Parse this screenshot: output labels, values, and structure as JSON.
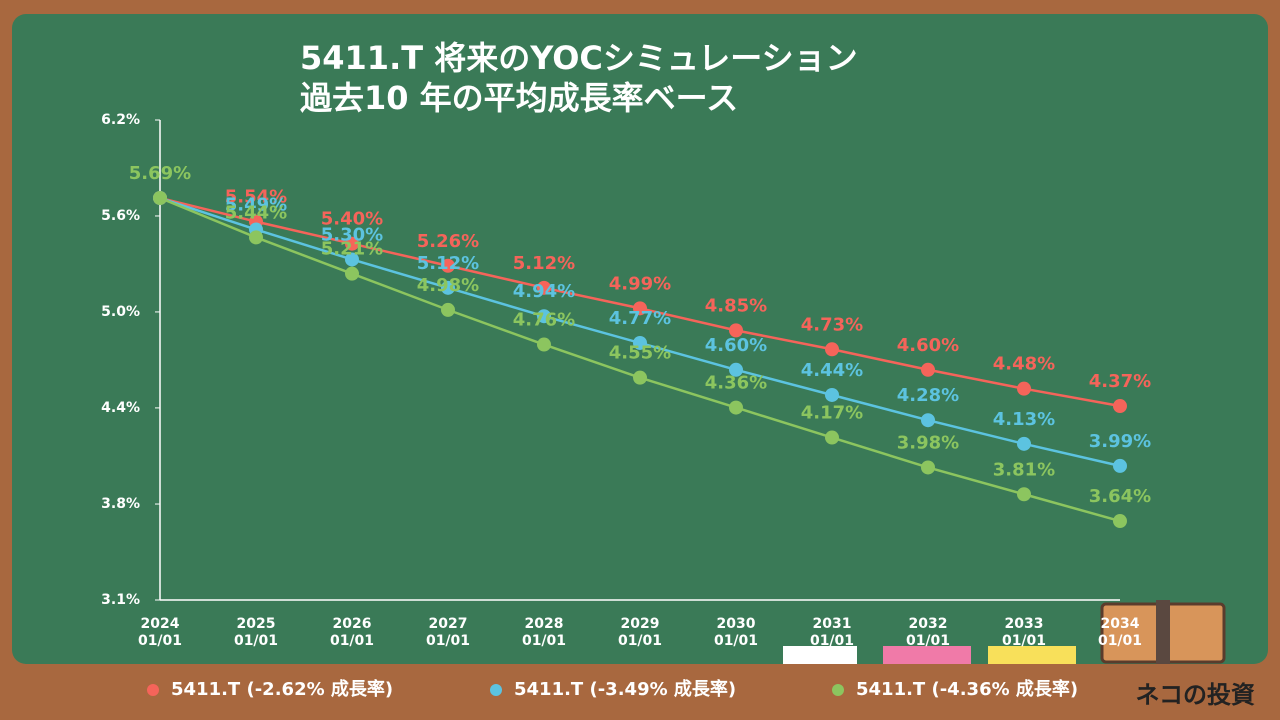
{
  "chart_data": {
    "type": "line",
    "title": "5411.T 将来のYOCシミュレーション",
    "subtitle": "過去10 年の平均成長率ベース",
    "categories": [
      "2024\n01/01",
      "2025\n01/01",
      "2026\n01/01",
      "2027\n01/01",
      "2028\n01/01",
      "2029\n01/01",
      "2030\n01/01",
      "2031\n01/01",
      "2032\n01/01",
      "2033\n01/01",
      "2034\n01/01"
    ],
    "series": [
      {
        "name": "5411.T (-2.62% 成長率)",
        "color": "#f5645a",
        "values": [
          5.69,
          5.54,
          5.4,
          5.26,
          5.12,
          4.99,
          4.85,
          4.73,
          4.6,
          4.48,
          4.37
        ],
        "value_labels": [
          null,
          "5.54%",
          "5.40%",
          "5.26%",
          "5.12%",
          "4.99%",
          "4.85%",
          "4.73%",
          "4.60%",
          "4.48%",
          "4.37%"
        ]
      },
      {
        "name": "5411.T (-3.49% 成長率)",
        "color": "#5cc3e0",
        "values": [
          5.69,
          5.49,
          5.3,
          5.12,
          4.94,
          4.77,
          4.6,
          4.44,
          4.28,
          4.13,
          3.99
        ],
        "value_labels": [
          null,
          "5.49%",
          "5.30%",
          "5.12%",
          "4.94%",
          "4.77%",
          "4.60%",
          "4.44%",
          "4.28%",
          "4.13%",
          "3.99%"
        ]
      },
      {
        "name": "5411.T (-4.36% 成長率)",
        "color": "#8cc55f",
        "values": [
          5.69,
          5.44,
          5.21,
          4.98,
          4.76,
          4.55,
          4.36,
          4.17,
          3.98,
          3.81,
          3.64
        ],
        "value_labels": [
          "5.69%",
          "5.44%",
          "5.21%",
          "4.98%",
          "4.76%",
          "4.55%",
          "4.36%",
          "4.17%",
          "3.98%",
          "3.81%",
          "3.64%"
        ]
      }
    ],
    "ylim": [
      3.139,
      6.185
    ],
    "yticks": [
      {
        "value": 6.185,
        "label": "6.2%"
      },
      {
        "value": 5.576,
        "label": "5.6%"
      },
      {
        "value": 4.967,
        "label": "5.0%"
      },
      {
        "value": 4.358,
        "label": "4.4%"
      },
      {
        "value": 3.748,
        "label": "3.8%"
      },
      {
        "value": 3.139,
        "label": "3.1%"
      }
    ],
    "legend": "bottom"
  },
  "brand": "ネコの投資"
}
